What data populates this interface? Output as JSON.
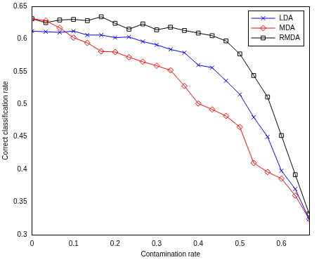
{
  "chart_data": {
    "type": "line",
    "x_label": "Contamination rate",
    "y_label": "Correct classification rate",
    "x": [
      0,
      0.0333,
      0.0667,
      0.1,
      0.1333,
      0.1667,
      0.2,
      0.2333,
      0.2667,
      0.3,
      0.3333,
      0.3667,
      0.4,
      0.4333,
      0.4667,
      0.5,
      0.5333,
      0.5667,
      0.6,
      0.6333,
      0.6667
    ],
    "series": [
      {
        "name": "LDA",
        "color": "#0000ff",
        "marker": "x",
        "line_style": "solid",
        "values": [
          0.612,
          0.611,
          0.61,
          0.612,
          0.606,
          0.606,
          0.602,
          0.603,
          0.596,
          0.591,
          0.584,
          0.579,
          0.56,
          0.556,
          0.536,
          0.515,
          0.48,
          0.45,
          0.398,
          0.37,
          0.324
        ]
      },
      {
        "name": "MDA",
        "color": "#ff0000",
        "marker": "diamond",
        "line_style": "solid",
        "values": [
          0.631,
          0.628,
          0.617,
          0.602,
          0.594,
          0.581,
          0.58,
          0.572,
          0.565,
          0.559,
          0.552,
          0.528,
          0.501,
          0.492,
          0.482,
          0.465,
          0.41,
          0.396,
          0.386,
          0.36,
          0.324
        ]
      },
      {
        "name": "RMDA",
        "color": "#000000",
        "marker": "square",
        "line_style": "solid",
        "values": [
          0.631,
          0.625,
          0.629,
          0.63,
          0.628,
          0.634,
          0.624,
          0.615,
          0.623,
          0.614,
          0.618,
          0.613,
          0.609,
          0.605,
          0.597,
          0.577,
          0.544,
          0.511,
          0.452,
          0.392,
          0.332
        ]
      }
    ],
    "xlim": [
      0,
      0.6667
    ],
    "xticks": [
      0,
      0.1,
      0.2,
      0.3,
      0.4,
      0.5,
      0.6
    ],
    "ylim": [
      0.3,
      0.65
    ],
    "yticks": [
      0.3,
      0.35,
      0.4,
      0.45,
      0.5,
      0.55,
      0.6,
      0.65
    ],
    "grid": false,
    "legend": "top-right"
  }
}
